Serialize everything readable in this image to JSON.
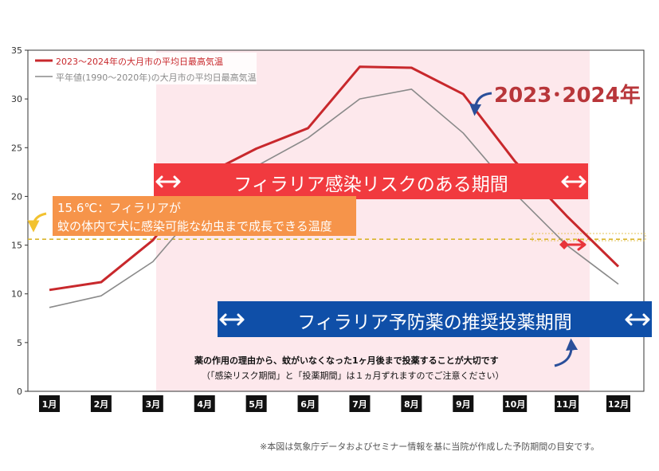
{
  "chart_data": {
    "type": "line",
    "categories": [
      "1月",
      "2月",
      "3月",
      "4月",
      "5月",
      "6月",
      "7月",
      "8月",
      "9月",
      "10月",
      "11月",
      "12月"
    ],
    "series": [
      {
        "name": "2023〜2024年の大月市の平均日最高気温",
        "color": "#c8282c",
        "values": [
          10.4,
          11.2,
          15.5,
          22.2,
          24.9,
          27.0,
          33.3,
          33.2,
          30.5,
          23.6,
          18.0,
          12.8
        ]
      },
      {
        "name": "平年値(1990〜2020年)の大月市の平均日最高気温",
        "color": "#8a8a8a",
        "values": [
          8.6,
          9.8,
          13.3,
          19.5,
          23.1,
          26.0,
          30.0,
          31.0,
          26.5,
          20.3,
          15.0,
          11.0
        ]
      }
    ],
    "ylim": [
      0,
      35
    ],
    "yticks": [
      0,
      5,
      10,
      15,
      20,
      25,
      30,
      35
    ],
    "threshold": {
      "value": 15.6
    }
  },
  "annotations": {
    "series_label": "2023･2024年",
    "threshold_text": [
      "15.6℃：フィラリアが",
      "蚊の体内で犬に感染可能な幼虫まで成長できる温度"
    ],
    "risk_period": "フィラリア感染リスクのある期間",
    "prevention_period": "フィラリア予防薬の推奨投薬期間",
    "note_bold": "薬の作用の理由から、蚊がいなくなった1ヶ月後まで投薬することが大切です",
    "note_sub": "（「感染リスク期間」と「投薬期間」は１ヵ月ずれますのでご注意ください）",
    "footnote": "※本図は気象庁データおよびセミナー情報を基に当院が作成した予防期間の目安です。"
  },
  "colors": {
    "risk_band": "#fde8ec",
    "risk_bar": "#f13a3f",
    "prevention_bar": "#0f4fa8",
    "threshold_box": "#f6944a",
    "threshold_line": "#d9b52c"
  }
}
